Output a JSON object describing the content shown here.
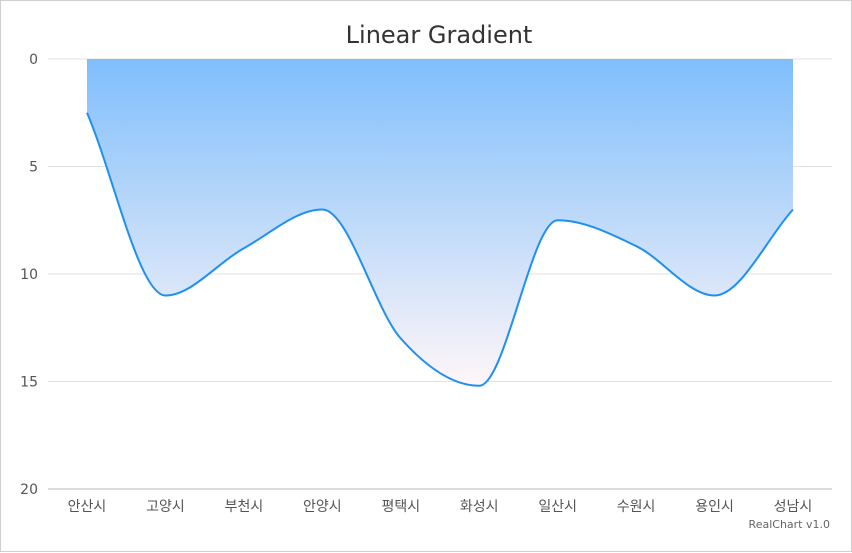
{
  "chart_data": {
    "type": "area",
    "title": "Linear Gradient",
    "categories": [
      "안산시",
      "고양시",
      "부천시",
      "안양시",
      "평택시",
      "화성시",
      "일산시",
      "수원시",
      "용인시",
      "성남시"
    ],
    "values": [
      2.5,
      11,
      8.8,
      7,
      13,
      15.2,
      7.5,
      8.7,
      11,
      7
    ],
    "y_axis_reversed": true,
    "ylim": [
      0,
      20
    ],
    "yticks": [
      "0",
      "5",
      "10",
      "15",
      "20"
    ],
    "grid": true,
    "legend": "none",
    "line_color": "#1e90ee",
    "gradient_top_color": "#7fbefc",
    "gradient_bottom_color": "#fff6f8",
    "credit": "RealChart v1.0"
  }
}
